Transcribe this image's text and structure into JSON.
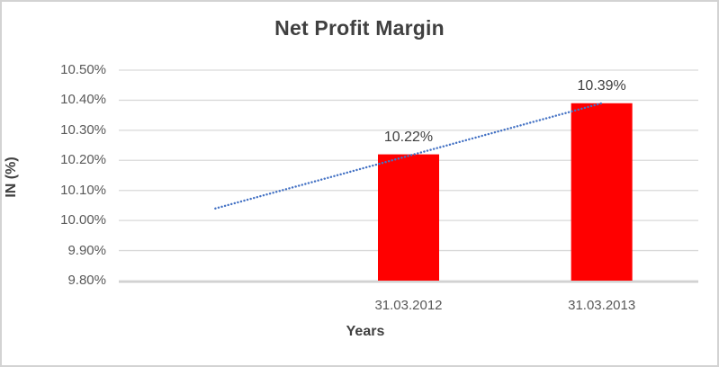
{
  "chart_data": {
    "type": "bar",
    "title": "Net Profit Margin",
    "xlabel": "Years",
    "ylabel": "IN (%)",
    "categories": [
      "31.03.2012",
      "31.03.2013"
    ],
    "values": [
      10.22,
      10.39
    ],
    "data_labels": [
      "10.22%",
      "10.39%"
    ],
    "y_ticks": [
      "10.50%",
      "10.40%",
      "10.30%",
      "10.20%",
      "10.10%",
      "10.00%",
      "9.90%",
      "9.80%"
    ],
    "y_tick_values": [
      10.5,
      10.4,
      10.3,
      10.2,
      10.1,
      10.0,
      9.9,
      9.8
    ],
    "ylim": [
      9.8,
      10.5
    ],
    "grid": true,
    "legend": false,
    "bar_color": "#ff0000",
    "gridline_color": "#d9d9d9",
    "axis_line_color": "#c6c6c6",
    "trendline": {
      "style": "dotted",
      "color": "#4472c4",
      "start_value": 10.04,
      "end_value": 10.39
    }
  }
}
